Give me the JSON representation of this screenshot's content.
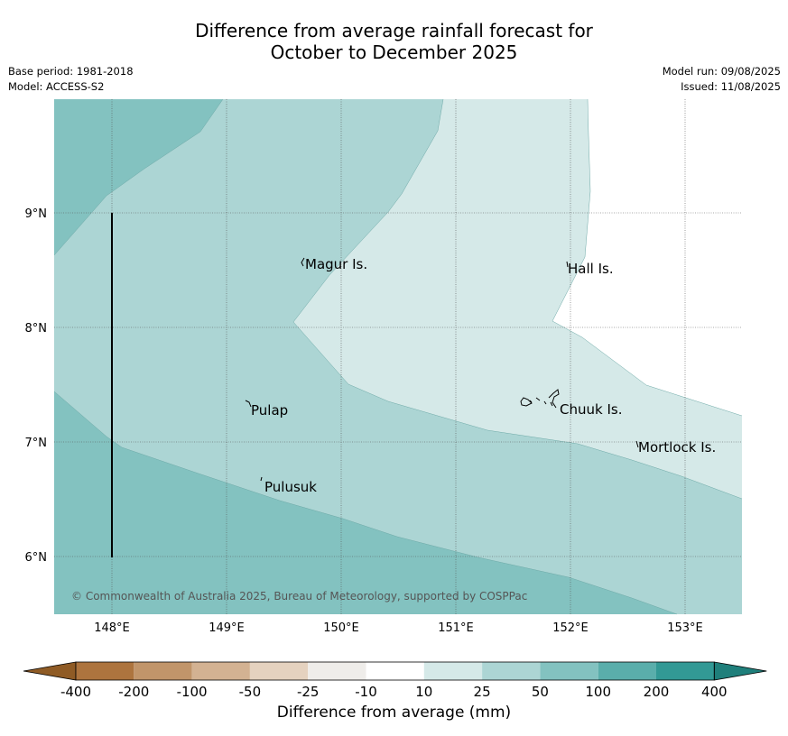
{
  "title": {
    "line1": "Difference from average rainfall forecast for",
    "line2": "October to December 2025"
  },
  "info_left": {
    "base_period": "Base period: 1981-2018",
    "model": "Model: ACCESS-S2"
  },
  "info_right": {
    "model_run": "Model run: 09/08/2025",
    "issued": "Issued: 11/08/2025"
  },
  "map": {
    "lon_ticks": [
      "148°E",
      "149°E",
      "150°E",
      "151°E",
      "152°E",
      "153°E"
    ],
    "lat_ticks": [
      "9°N",
      "8°N",
      "7°N",
      "6°N"
    ],
    "places": [
      "Magur Is.",
      "Hall Is.",
      "Pulap",
      "Chuuk Is.",
      "Mortlock Is.",
      "Pulusuk"
    ],
    "credit": "© Commonwealth of Australia 2025, Bureau of Meteorology, supported by COSPPac",
    "category_colors": {
      "10-25": "#d5e9e8",
      "25-50": "#acd5d4",
      "50-100": "#83c2c0"
    }
  },
  "colorbar": {
    "ticks": [
      "-400",
      "-200",
      "-100",
      "-50",
      "-25",
      "-10",
      "10",
      "25",
      "50",
      "100",
      "200",
      "400"
    ],
    "colors": [
      "#8f5b25",
      "#ad743e",
      "#c1956a",
      "#d3b292",
      "#e5d2bf",
      "#efedea",
      "#ffffff",
      "#d5e9e8",
      "#acd5d4",
      "#83c2c0",
      "#5aaeab",
      "#329995",
      "#1f7f7b"
    ],
    "label": "Difference from average (mm)"
  }
}
